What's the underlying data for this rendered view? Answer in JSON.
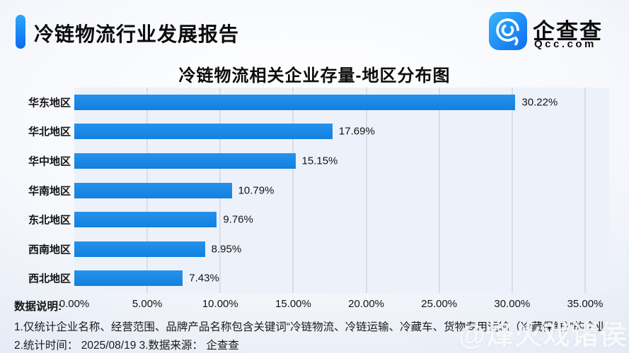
{
  "header": {
    "title": "冷链物流行业发展报告",
    "accent_color": "#0b6bf0",
    "brand": {
      "name": "企查查",
      "domain": "Qcc.com",
      "icon_color_top": "#38b4f9",
      "icon_color_bottom": "#0d6df3"
    }
  },
  "chart_data": {
    "type": "bar",
    "orientation": "horizontal",
    "title": "冷链物流相关企业存量-地区分布图",
    "categories": [
      "华东地区",
      "华北地区",
      "华中地区",
      "华南地区",
      "东北地区",
      "西南地区",
      "西北地区"
    ],
    "values": [
      30.22,
      17.69,
      15.15,
      10.79,
      9.76,
      8.95,
      7.43
    ],
    "value_labels": [
      "30.22%",
      "17.69%",
      "15.15%",
      "10.79%",
      "9.76%",
      "8.95%",
      "7.43%"
    ],
    "x_ticks": [
      "0.00%",
      "5.00%",
      "10.00%",
      "15.00%",
      "20.00%",
      "25.00%",
      "30.00%",
      "35.00%"
    ],
    "x_tick_values": [
      0,
      5,
      10,
      15,
      20,
      25,
      30,
      35
    ],
    "xlim": [
      0,
      35
    ],
    "bar_color": "#1886e5",
    "plot_background": "#edf1f9",
    "grid": true,
    "legend": "none"
  },
  "footnotes": {
    "label": "数据说明:",
    "note1": "1.仅统计企业名称、经营范围、品牌产品名称包含关键词“冷链物流、冷链运输、冷藏车、货物专用运输（冷藏保鲜）”的企业",
    "note2": "2.统计时间： 2025/08/19   3.数据来源： 企查查"
  },
  "watermark": "@烽火戏诸侯"
}
